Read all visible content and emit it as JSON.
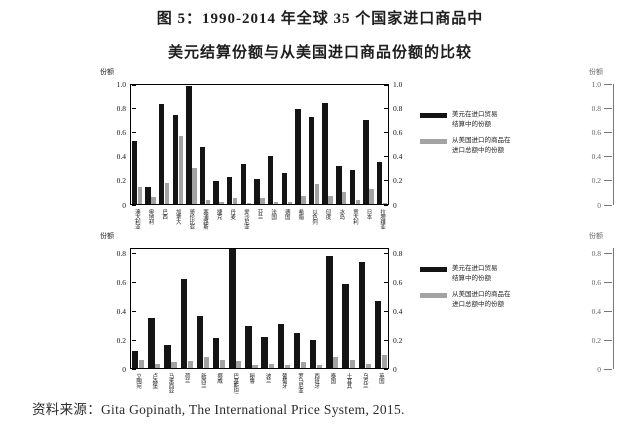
{
  "page": {
    "title_line1": "图 5：1990-2014 年全球 35 个国家进口商品中",
    "title_line2": "美元结算份额与从美国进口商品份额的比较",
    "source": "资料来源：Gita Gopinath, The International Price System, 2015."
  },
  "legend": {
    "series1_line1": "美元在进口贸易",
    "series1_line2": "结算中的份额",
    "series2_line1": "从美国进口的商品在",
    "series2_line2": "进口总额中的份额",
    "series1_color": "#141414",
    "series2_color": "#a3a3a3"
  },
  "chart_data": [
    {
      "type": "bar",
      "title": "",
      "ylabel": "份额",
      "ylabel_right": "份额",
      "ylim": [
        0,
        1.0
      ],
      "yticks": [
        "1.0",
        "0.8",
        "0.6",
        "0.4",
        "0.2",
        "0"
      ],
      "grid": false,
      "legend_position": "right",
      "categories": [
        "澳大利亚",
        "奥地利",
        "巴西",
        "加拿大",
        "哥伦比亚",
        "塞浦路斯",
        "捷克",
        "丹麦",
        "爱沙尼亚",
        "芬兰",
        "法国",
        "德国",
        "希腊",
        "以色列",
        "印度",
        "冰岛",
        "意大利",
        "日本",
        "拉脱维亚"
      ],
      "series": [
        {
          "name": "美元在进口贸易结算中的份额",
          "color": "#141414",
          "values": [
            0.53,
            0.14,
            0.84,
            0.75,
            0.99,
            0.48,
            0.19,
            0.23,
            0.34,
            0.21,
            0.4,
            0.26,
            0.8,
            0.73,
            0.85,
            0.32,
            0.29,
            0.71,
            0.35
          ]
        },
        {
          "name": "从美国进口的商品在进口总额中的份额",
          "color": "#a3a3a3",
          "values": [
            0.14,
            0.06,
            0.18,
            0.57,
            0.3,
            0.03,
            0.02,
            0.05,
            0.01,
            0.05,
            0.02,
            0.02,
            0.07,
            0.17,
            0.07,
            0.1,
            0.03,
            0.13,
            0.01
          ]
        }
      ]
    },
    {
      "type": "bar",
      "title": "",
      "ylabel": "份额",
      "ylabel_right": "份额",
      "ylim": [
        0,
        0.84
      ],
      "yticks": [
        "0.8",
        "0.6",
        "0.4",
        "0.2",
        "0"
      ],
      "grid": false,
      "legend_position": "right",
      "categories": [
        "立陶宛",
        "卢森堡",
        "马来西亚",
        "荷兰",
        "新西兰",
        "挪威",
        "巴基斯坦",
        "秘鲁",
        "波兰",
        "葡萄牙",
        "罗马尼亚",
        "西班牙",
        "泰国",
        "土耳其",
        "乌克兰",
        "英国"
      ],
      "series": [
        {
          "name": "美元在进口贸易结算中的份额",
          "color": "#141414",
          "values": [
            0.12,
            0.35,
            0.16,
            0.63,
            0.37,
            0.21,
            0.84,
            0.3,
            0.22,
            0.31,
            0.25,
            0.2,
            0.79,
            0.59,
            0.75,
            0.47
          ]
        },
        {
          "name": "从美国进口的商品在进口总额中的份额",
          "color": "#a3a3a3",
          "values": [
            0.06,
            0.03,
            0.04,
            0.05,
            0.08,
            0.06,
            0.05,
            0.02,
            0.03,
            0.02,
            0.04,
            0.02,
            0.08,
            0.06,
            0.03,
            0.09
          ]
        }
      ]
    }
  ]
}
